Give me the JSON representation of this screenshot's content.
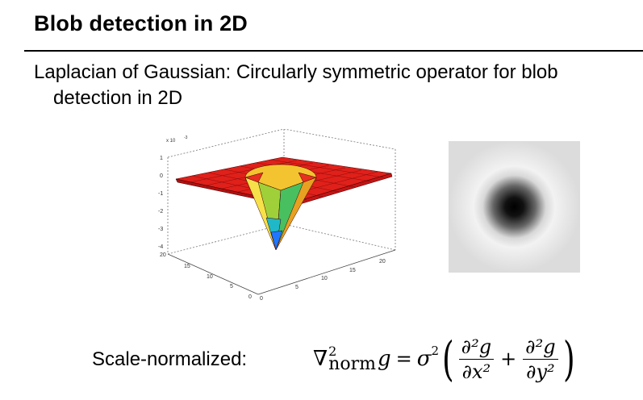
{
  "slide": {
    "title": "Blob detection in 2D",
    "bullet": "Laplacian of Gaussian: Circularly symmetric operator for blob detection in 2D"
  },
  "figure3d": {
    "exponent_label": "x 10",
    "exponent_power": "-3",
    "z_ticks": [
      "1",
      "0",
      "-1",
      "-2",
      "-3",
      "-4"
    ],
    "y_ticks": [
      "20",
      "15",
      "10",
      "5",
      "0"
    ],
    "x_ticks": [
      "0",
      "5",
      "10",
      "15",
      "20"
    ],
    "colors": {
      "surface": "#e41a1c",
      "edge": "#3a0000",
      "tip": "#1f77ff"
    }
  },
  "scale_normalized": {
    "label": "Scale-normalized:",
    "nabla": "∇",
    "nabla_sup": "2",
    "nabla_sub": "norm",
    "g": "g",
    "eq": "=",
    "sigma": "σ",
    "sigma_sup": "2",
    "lparen": "(",
    "rparen": ")",
    "num1": "∂²g",
    "den1": "∂x²",
    "plus": "+",
    "num2": "∂²g",
    "den2": "∂y²"
  }
}
